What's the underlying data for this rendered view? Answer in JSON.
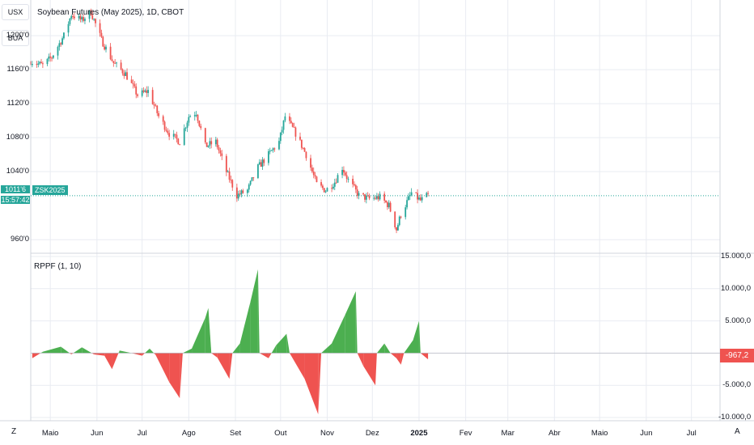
{
  "chart_title": "Soybean Futures (May 2025), 1D, CBOT",
  "side_buttons": {
    "currency": "USX",
    "script": "BUA"
  },
  "footer_buttons": {
    "left": "Z",
    "right": "A"
  },
  "colors": {
    "up": "#26a69a",
    "down": "#ef5350",
    "hist_up": "#4caf50",
    "hist_down": "#ef5350",
    "grid": "#e9ecf2",
    "last_line": "#26a69a"
  },
  "price_axis": {
    "ticks": [
      "1200'0",
      "1160'0",
      "1120'0",
      "1080'0",
      "1040'0",
      "960'0"
    ],
    "tick_values": [
      1200,
      1160,
      1120,
      1080,
      1040,
      960
    ],
    "ylim": [
      944,
      1242
    ]
  },
  "last_price": {
    "label": "1011'6",
    "value": 1011.75,
    "countdown": "15:57:42",
    "symbol": "ZSK2025"
  },
  "indicator": {
    "title": "RPPF (1, 10)",
    "ticks": [
      "15.000,0",
      "10.000,0",
      "5.000,0",
      "0,0",
      "-5.000,0",
      "-10.000,0"
    ],
    "tick_values": [
      15000,
      10000,
      5000,
      0,
      -5000,
      -10000
    ],
    "ylim": [
      -10500,
      15500
    ],
    "last_value": "-967,2"
  },
  "time_axis": {
    "labels": [
      "Maio",
      "Jun",
      "Jul",
      "Ago",
      "Set",
      "Out",
      "Nov",
      "Dez",
      "2025",
      "Fev",
      "Mar",
      "Abr",
      "Maio",
      "Jun",
      "Jul"
    ],
    "bold": [
      "2025"
    ]
  },
  "chart_data": {
    "type": "candlestick",
    "title": "Soybean Futures (May 2025), 1D, CBOT",
    "x_range": [
      "2024-04-18",
      "2025-07-20"
    ],
    "price_path": [
      [
        "2024-04-18",
        1170
      ],
      [
        "2024-04-26",
        1165
      ],
      [
        "2024-05-02",
        1175
      ],
      [
        "2024-05-10",
        1200
      ],
      [
        "2024-05-15",
        1225
      ],
      [
        "2024-05-22",
        1218
      ],
      [
        "2024-05-28",
        1228
      ],
      [
        "2024-06-04",
        1195
      ],
      [
        "2024-06-12",
        1168
      ],
      [
        "2024-06-20",
        1155
      ],
      [
        "2024-06-28",
        1130
      ],
      [
        "2024-07-05",
        1135
      ],
      [
        "2024-07-12",
        1105
      ],
      [
        "2024-07-19",
        1085
      ],
      [
        "2024-07-26",
        1075
      ],
      [
        "2024-08-01",
        1105
      ],
      [
        "2024-08-06",
        1110
      ],
      [
        "2024-08-12",
        1070
      ],
      [
        "2024-08-19",
        1075
      ],
      [
        "2024-08-26",
        1040
      ],
      [
        "2024-09-02",
        1012
      ],
      [
        "2024-09-09",
        1018
      ],
      [
        "2024-09-16",
        1045
      ],
      [
        "2024-09-23",
        1060
      ],
      [
        "2024-09-30",
        1075
      ],
      [
        "2024-10-04",
        1105
      ],
      [
        "2024-10-11",
        1085
      ],
      [
        "2024-10-18",
        1060
      ],
      [
        "2024-10-25",
        1025
      ],
      [
        "2024-10-31",
        1018
      ],
      [
        "2024-11-06",
        1028
      ],
      [
        "2024-11-11",
        1045
      ],
      [
        "2024-11-15",
        1030
      ],
      [
        "2024-11-22",
        1012
      ],
      [
        "2024-11-29",
        1008
      ],
      [
        "2024-12-06",
        1010
      ],
      [
        "2024-12-12",
        1000
      ],
      [
        "2024-12-17",
        972
      ],
      [
        "2024-12-20",
        990
      ],
      [
        "2024-12-27",
        1015
      ],
      [
        "2025-01-02",
        1006
      ],
      [
        "2025-01-07",
        1012
      ]
    ],
    "oscillator": [
      [
        "2024-04-19",
        -800
      ],
      [
        "2024-04-26",
        200
      ],
      [
        "2024-05-08",
        1000
      ],
      [
        "2024-05-15",
        -200
      ],
      [
        "2024-05-22",
        900
      ],
      [
        "2024-05-30",
        -200
      ],
      [
        "2024-06-06",
        -400
      ],
      [
        "2024-06-11",
        -2500
      ],
      [
        "2024-06-16",
        400
      ],
      [
        "2024-06-24",
        0
      ],
      [
        "2024-07-01",
        -400
      ],
      [
        "2024-07-06",
        700
      ],
      [
        "2024-07-10",
        -300
      ],
      [
        "2024-07-19",
        -4500
      ],
      [
        "2024-07-26",
        -7000
      ],
      [
        "2024-07-28",
        0
      ],
      [
        "2024-08-03",
        700
      ],
      [
        "2024-08-12",
        5500
      ],
      [
        "2024-08-14",
        7000
      ],
      [
        "2024-08-16",
        0
      ],
      [
        "2024-08-20",
        -700
      ],
      [
        "2024-08-28",
        -4000
      ],
      [
        "2024-08-30",
        0
      ],
      [
        "2024-09-04",
        1500
      ],
      [
        "2024-09-11",
        8000
      ],
      [
        "2024-09-16",
        13000
      ],
      [
        "2024-09-17",
        0
      ],
      [
        "2024-09-23",
        -800
      ],
      [
        "2024-09-28",
        1200
      ],
      [
        "2024-10-05",
        3000
      ],
      [
        "2024-10-07",
        0
      ],
      [
        "2024-10-17",
        -4000
      ],
      [
        "2024-10-26",
        -9500
      ],
      [
        "2024-10-28",
        0
      ],
      [
        "2024-11-04",
        1500
      ],
      [
        "2024-11-13",
        6000
      ],
      [
        "2024-11-20",
        9600
      ],
      [
        "2024-11-21",
        0
      ],
      [
        "2024-11-25",
        -2000
      ],
      [
        "2024-12-03",
        -5000
      ],
      [
        "2024-12-04",
        0
      ],
      [
        "2024-12-09",
        1500
      ],
      [
        "2024-12-13",
        0
      ],
      [
        "2024-12-17",
        -800
      ],
      [
        "2024-12-20",
        -1800
      ],
      [
        "2024-12-22",
        0
      ],
      [
        "2024-12-28",
        2000
      ],
      [
        "2025-01-01",
        5000
      ],
      [
        "2025-01-02",
        0
      ],
      [
        "2025-01-07",
        -967
      ]
    ],
    "indicator_name": "RPPF (1, 10)",
    "last_close": 1011.75,
    "last_indicator_value": -967.2
  }
}
